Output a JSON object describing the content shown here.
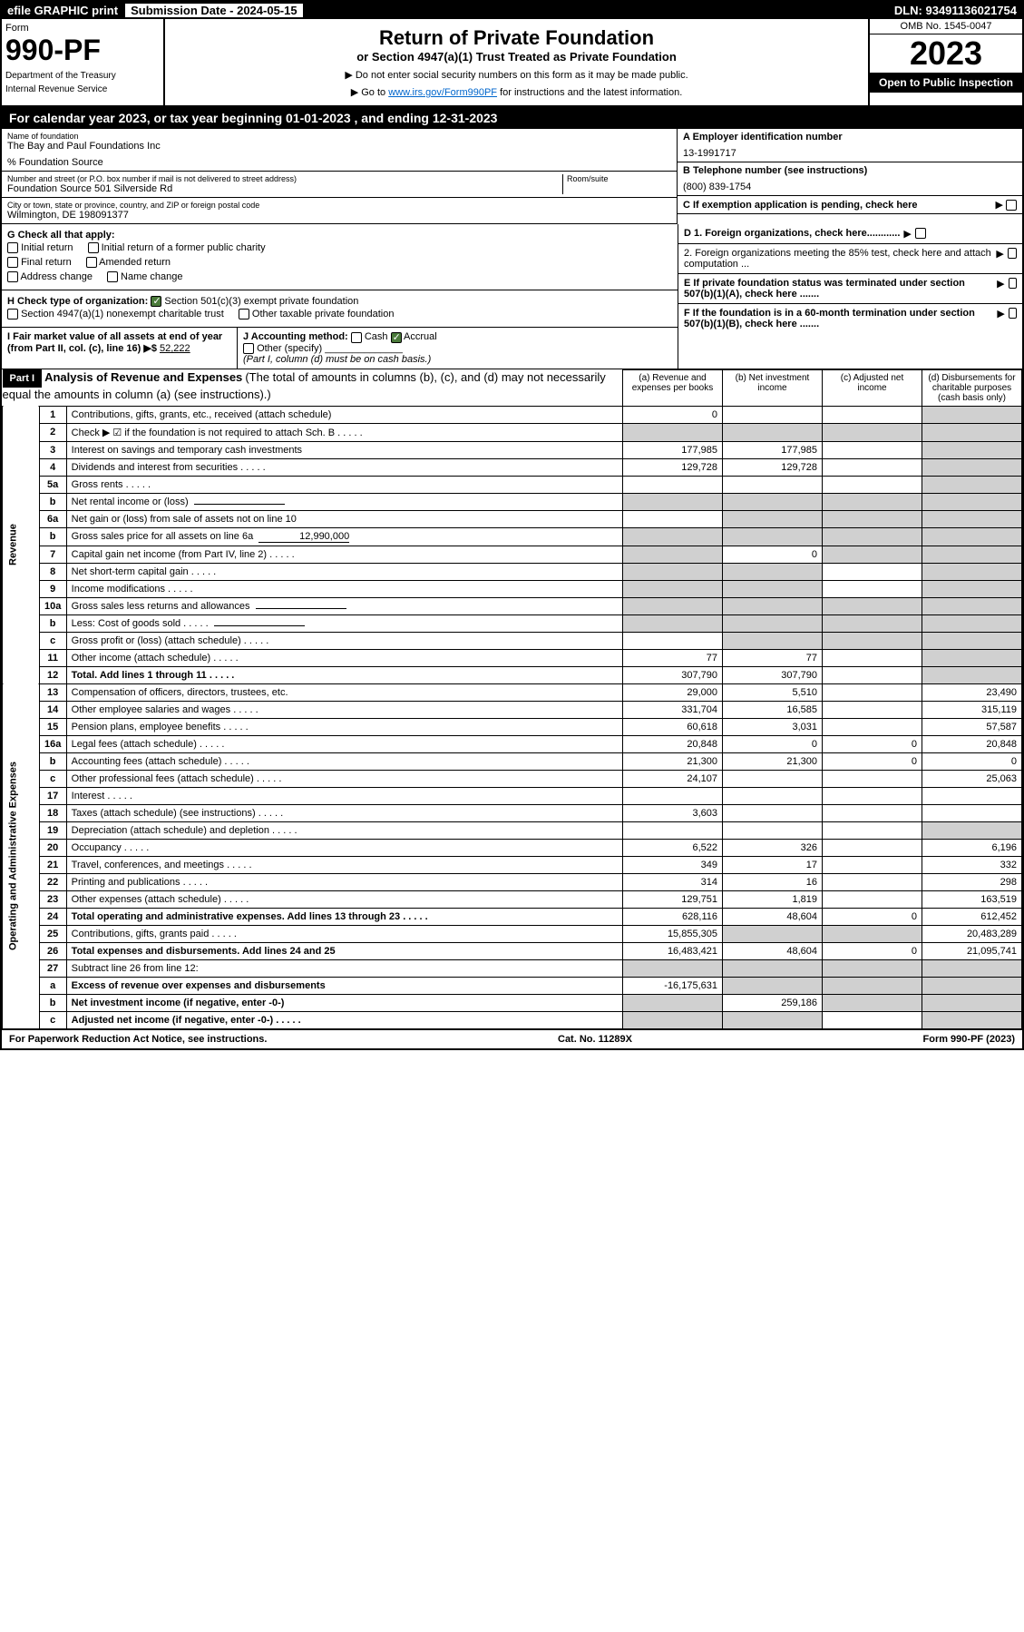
{
  "header": {
    "efile": "efile GRAPHIC print",
    "submission": "Submission Date - 2024-05-15",
    "dln": "DLN: 93491136021754"
  },
  "form_box": {
    "form_label": "Form",
    "form_num": "990-PF",
    "dept1": "Department of the Treasury",
    "dept2": "Internal Revenue Service"
  },
  "title": {
    "main": "Return of Private Foundation",
    "sub": "or Section 4947(a)(1) Trust Treated as Private Foundation",
    "note1": "▶ Do not enter social security numbers on this form as it may be made public.",
    "note2_pre": "▶ Go to ",
    "note2_link": "www.irs.gov/Form990PF",
    "note2_post": " for instructions and the latest information."
  },
  "year_box": {
    "omb": "OMB No. 1545-0047",
    "year": "2023",
    "open": "Open to Public Inspection"
  },
  "cal_year": "For calendar year 2023, or tax year beginning 01-01-2023                          , and ending 12-31-2023",
  "info": {
    "name_label": "Name of foundation",
    "name": "The Bay and Paul Foundations Inc",
    "care": "% Foundation Source",
    "addr_label": "Number and street (or P.O. box number if mail is not delivered to street address)",
    "addr": "Foundation Source 501 Silverside Rd",
    "room_label": "Room/suite",
    "city_label": "City or town, state or province, country, and ZIP or foreign postal code",
    "city": "Wilmington, DE  198091377",
    "ein_label": "A Employer identification number",
    "ein": "13-1991717",
    "tel_label": "B Telephone number (see instructions)",
    "tel": "(800) 839-1754",
    "c_label": "C If exemption application is pending, check here",
    "d1_label": "D 1. Foreign organizations, check here............",
    "d2_label": "2. Foreign organizations meeting the 85% test, check here and attach computation ...",
    "e_label": "E  If private foundation status was terminated under section 507(b)(1)(A), check here .......",
    "f_label": "F  If the foundation is in a 60-month termination under section 507(b)(1)(B), check here .......",
    "g_label": "G Check all that apply:",
    "g_opts": [
      "Initial return",
      "Initial return of a former public charity",
      "Final return",
      "Amended return",
      "Address change",
      "Name change"
    ],
    "h_label": "H Check type of organization:",
    "h1": "Section 501(c)(3) exempt private foundation",
    "h2": "Section 4947(a)(1) nonexempt charitable trust",
    "h3": "Other taxable private foundation",
    "i_label": "I Fair market value of all assets at end of year (from Part II, col. (c), line 16) ▶$",
    "i_val": "52,222",
    "j_label": "J Accounting method:",
    "j_cash": "Cash",
    "j_accrual": "Accrual",
    "j_other": "Other (specify)",
    "j_note": "(Part I, column (d) must be on cash basis.)"
  },
  "part1": {
    "label": "Part I",
    "title": "Analysis of Revenue and Expenses",
    "title_note": "(The total of amounts in columns (b), (c), and (d) may not necessarily equal the amounts in column (a) (see instructions).)",
    "col_a": "(a)   Revenue and expenses per books",
    "col_b": "(b)   Net investment income",
    "col_c": "(c)   Adjusted net income",
    "col_d": "(d)   Disbursements for charitable purposes (cash basis only)"
  },
  "sections": {
    "revenue": "Revenue",
    "opex": "Operating and Administrative Expenses"
  },
  "rows": [
    {
      "n": "1",
      "label": "Contributions, gifts, grants, etc., received (attach schedule)",
      "a": "0",
      "b": "",
      "c": "",
      "d": "",
      "da": false,
      "dd": true
    },
    {
      "n": "2",
      "label": "Check ▶ ☑ if the foundation is not required to attach Sch. B",
      "a": "",
      "b": "",
      "c": "",
      "d": "",
      "da": true,
      "db": true,
      "dc": true,
      "dd": true,
      "dots": true
    },
    {
      "n": "3",
      "label": "Interest on savings and temporary cash investments",
      "a": "177,985",
      "b": "177,985",
      "c": "",
      "d": "",
      "dd": true
    },
    {
      "n": "4",
      "label": "Dividends and interest from securities",
      "a": "129,728",
      "b": "129,728",
      "c": "",
      "d": "",
      "dd": true,
      "dots": true
    },
    {
      "n": "5a",
      "label": "Gross rents",
      "a": "",
      "b": "",
      "c": "",
      "d": "",
      "dd": true,
      "dots": true
    },
    {
      "n": "b",
      "label": "Net rental income or (loss)",
      "a": "",
      "b": "",
      "c": "",
      "d": "",
      "da": true,
      "db": true,
      "dc": true,
      "dd": true,
      "inline": true
    },
    {
      "n": "6a",
      "label": "Net gain or (loss) from sale of assets not on line 10",
      "a": "",
      "b": "",
      "c": "",
      "d": "",
      "db": true,
      "dc": true,
      "dd": true
    },
    {
      "n": "b",
      "label": "Gross sales price for all assets on line 6a",
      "a": "",
      "b": "",
      "c": "",
      "d": "",
      "da": true,
      "db": true,
      "dc": true,
      "dd": true,
      "inline": true,
      "inlineval": "12,990,000"
    },
    {
      "n": "7",
      "label": "Capital gain net income (from Part IV, line 2)",
      "a": "",
      "b": "0",
      "c": "",
      "d": "",
      "da": true,
      "dc": true,
      "dd": true,
      "dots": true
    },
    {
      "n": "8",
      "label": "Net short-term capital gain",
      "a": "",
      "b": "",
      "c": "",
      "d": "",
      "da": true,
      "db": true,
      "dd": true,
      "dots": true
    },
    {
      "n": "9",
      "label": "Income modifications",
      "a": "",
      "b": "",
      "c": "",
      "d": "",
      "da": true,
      "db": true,
      "dd": true,
      "dots": true
    },
    {
      "n": "10a",
      "label": "Gross sales less returns and allowances",
      "a": "",
      "b": "",
      "c": "",
      "d": "",
      "da": true,
      "db": true,
      "dc": true,
      "dd": true,
      "inline": true
    },
    {
      "n": "b",
      "label": "Less: Cost of goods sold",
      "a": "",
      "b": "",
      "c": "",
      "d": "",
      "da": true,
      "db": true,
      "dc": true,
      "dd": true,
      "inline": true,
      "dots": true
    },
    {
      "n": "c",
      "label": "Gross profit or (loss) (attach schedule)",
      "a": "",
      "b": "",
      "c": "",
      "d": "",
      "db": true,
      "dc": true,
      "dd": true,
      "dots": true
    },
    {
      "n": "11",
      "label": "Other income (attach schedule)",
      "a": "77",
      "b": "77",
      "c": "",
      "d": "",
      "dd": true,
      "dots": true
    },
    {
      "n": "12",
      "label": "Total. Add lines 1 through 11",
      "a": "307,790",
      "b": "307,790",
      "c": "",
      "d": "",
      "dd": true,
      "bold": true,
      "dots": true
    }
  ],
  "opex_rows": [
    {
      "n": "13",
      "label": "Compensation of officers, directors, trustees, etc.",
      "a": "29,000",
      "b": "5,510",
      "c": "",
      "d": "23,490"
    },
    {
      "n": "14",
      "label": "Other employee salaries and wages",
      "a": "331,704",
      "b": "16,585",
      "c": "",
      "d": "315,119",
      "dots": true
    },
    {
      "n": "15",
      "label": "Pension plans, employee benefits",
      "a": "60,618",
      "b": "3,031",
      "c": "",
      "d": "57,587",
      "dots": true
    },
    {
      "n": "16a",
      "label": "Legal fees (attach schedule)",
      "a": "20,848",
      "b": "0",
      "c": "0",
      "d": "20,848",
      "dots": true
    },
    {
      "n": "b",
      "label": "Accounting fees (attach schedule)",
      "a": "21,300",
      "b": "21,300",
      "c": "0",
      "d": "0",
      "dots": true
    },
    {
      "n": "c",
      "label": "Other professional fees (attach schedule)",
      "a": "24,107",
      "b": "",
      "c": "",
      "d": "25,063",
      "dots": true
    },
    {
      "n": "17",
      "label": "Interest",
      "a": "",
      "b": "",
      "c": "",
      "d": "",
      "dots": true
    },
    {
      "n": "18",
      "label": "Taxes (attach schedule) (see instructions)",
      "a": "3,603",
      "b": "",
      "c": "",
      "d": "",
      "dots": true
    },
    {
      "n": "19",
      "label": "Depreciation (attach schedule) and depletion",
      "a": "",
      "b": "",
      "c": "",
      "d": "",
      "dd": true,
      "dots": true
    },
    {
      "n": "20",
      "label": "Occupancy",
      "a": "6,522",
      "b": "326",
      "c": "",
      "d": "6,196",
      "dots": true
    },
    {
      "n": "21",
      "label": "Travel, conferences, and meetings",
      "a": "349",
      "b": "17",
      "c": "",
      "d": "332",
      "dots": true
    },
    {
      "n": "22",
      "label": "Printing and publications",
      "a": "314",
      "b": "16",
      "c": "",
      "d": "298",
      "dots": true
    },
    {
      "n": "23",
      "label": "Other expenses (attach schedule)",
      "a": "129,751",
      "b": "1,819",
      "c": "",
      "d": "163,519",
      "dots": true
    },
    {
      "n": "24",
      "label": "Total operating and administrative expenses. Add lines 13 through 23",
      "a": "628,116",
      "b": "48,604",
      "c": "0",
      "d": "612,452",
      "bold": true,
      "dots": true
    },
    {
      "n": "25",
      "label": "Contributions, gifts, grants paid",
      "a": "15,855,305",
      "b": "",
      "c": "",
      "d": "20,483,289",
      "db": true,
      "dc": true,
      "dots": true
    },
    {
      "n": "26",
      "label": "Total expenses and disbursements. Add lines 24 and 25",
      "a": "16,483,421",
      "b": "48,604",
      "c": "0",
      "d": "21,095,741",
      "bold": true
    },
    {
      "n": "27",
      "label": "Subtract line 26 from line 12:",
      "a": "",
      "b": "",
      "c": "",
      "d": "",
      "da": true,
      "db": true,
      "dc": true,
      "dd": true
    },
    {
      "n": "a",
      "label": "Excess of revenue over expenses and disbursements",
      "a": "-16,175,631",
      "b": "",
      "c": "",
      "d": "",
      "db": true,
      "dc": true,
      "dd": true,
      "bold": true
    },
    {
      "n": "b",
      "label": "Net investment income (if negative, enter -0-)",
      "a": "",
      "b": "259,186",
      "c": "",
      "d": "",
      "da": true,
      "dc": true,
      "dd": true,
      "bold": true
    },
    {
      "n": "c",
      "label": "Adjusted net income (if negative, enter -0-)",
      "a": "",
      "b": "",
      "c": "",
      "d": "",
      "da": true,
      "db": true,
      "dd": true,
      "bold": true,
      "dots": true
    }
  ],
  "footer": {
    "left": "For Paperwork Reduction Act Notice, see instructions.",
    "mid": "Cat. No. 11289X",
    "right": "Form 990-PF (2023)"
  }
}
